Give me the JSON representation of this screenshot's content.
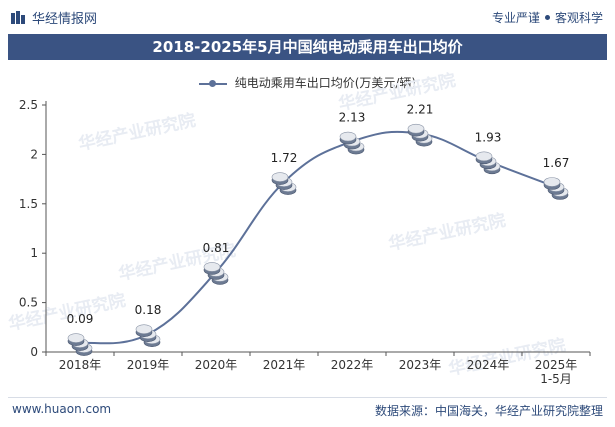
{
  "header": {
    "brand": "华经情报网",
    "slogan_left": "专业严谨",
    "slogan_right": "客观科学"
  },
  "chart_data": {
    "type": "line",
    "title": "2018-2025年5月中国纯电动乘用车出口均价",
    "categories": [
      "2018年",
      "2019年",
      "2020年",
      "2021年",
      "2022年",
      "2023年",
      "2024年",
      "2025年\n1-5月"
    ],
    "series": [
      {
        "name": "纯电动乘用车出口均价(万美元/辆)",
        "values": [
          0.09,
          0.18,
          0.81,
          1.72,
          2.13,
          2.21,
          1.93,
          1.67
        ]
      }
    ],
    "ylim": [
      0,
      2.5
    ],
    "yticks": [
      "0",
      "0.5",
      "1",
      "1.5",
      "2",
      "2.5"
    ],
    "grid": false,
    "legend": "top-center",
    "line_color": "#5d7199"
  },
  "watermark": "华经产业研究院",
  "footer": {
    "website": "www.huaon.com",
    "source": "数据来源：中国海关，华经产业研究院整理"
  }
}
